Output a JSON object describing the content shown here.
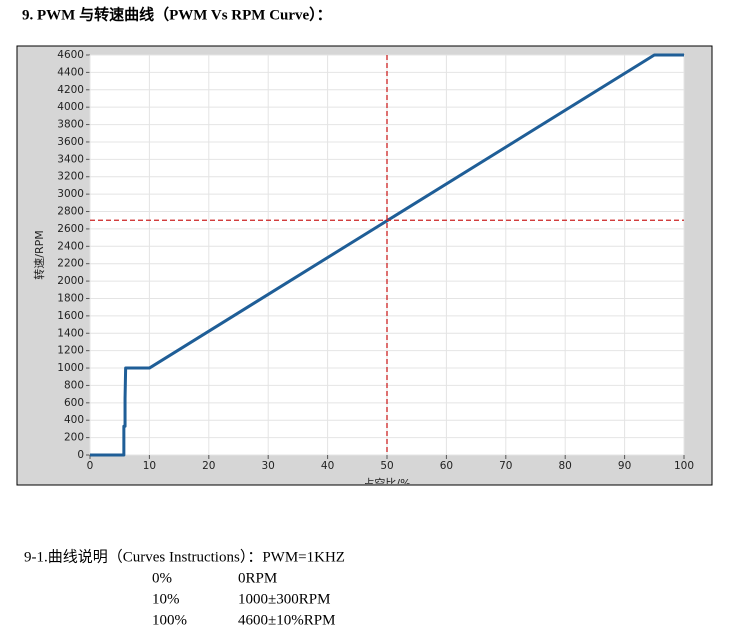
{
  "heading": "9.  PWM 与转速曲线（PWM Vs RPM Curve）：",
  "chart_data": {
    "type": "line",
    "xlabel": "占空比/%",
    "ylabel": "转速/RPM",
    "x": [
      0,
      5.7,
      5.7,
      5.9,
      5.9,
      6,
      10,
      95,
      100
    ],
    "series": [
      {
        "color": "#1f5e97",
        "values": [
          0,
          0,
          330,
          330,
          650,
          1000,
          1000,
          4600,
          4600
        ]
      }
    ],
    "xlim": [
      0,
      100
    ],
    "xticks": [
      0,
      10,
      20,
      30,
      40,
      50,
      60,
      70,
      80,
      90,
      100
    ],
    "ylim": [
      0,
      4600
    ],
    "yticks": [
      0,
      200,
      400,
      600,
      800,
      1000,
      1200,
      1400,
      1600,
      1800,
      2000,
      2200,
      2400,
      2600,
      2800,
      3000,
      3200,
      3400,
      3600,
      3800,
      4000,
      4200,
      4400,
      4600
    ],
    "grid": true,
    "crosshair": {
      "x": 50,
      "y": 2700,
      "color": "#cc2222"
    }
  },
  "notes": {
    "title": "9-1.曲线说明（Curves Instructions）：PWM=1KHZ",
    "rows": [
      [
        "0%",
        "0RPM"
      ],
      [
        "10%",
        "1000±300RPM"
      ],
      [
        "100%",
        "4600±10%RPM"
      ]
    ]
  }
}
